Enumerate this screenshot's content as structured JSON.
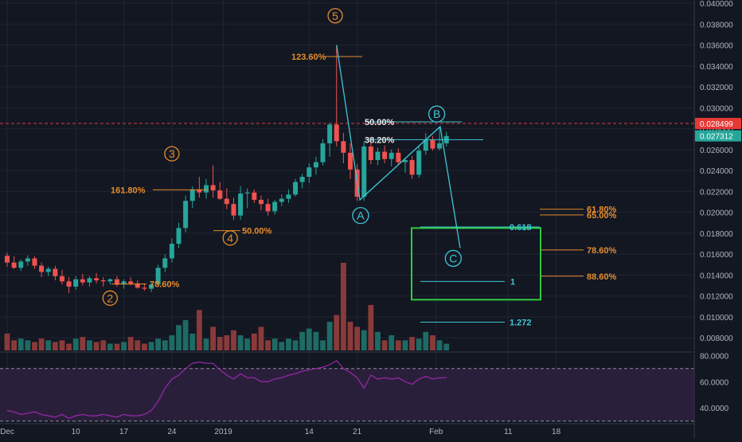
{
  "chart_data": {
    "type": "candlestick",
    "colors": {
      "background": "#131722",
      "grid": "#1f2433",
      "up": "#26a69a",
      "down": "#ef5350",
      "up_volume": "#1e6b64",
      "down_volume": "#8b3a3a",
      "fib": "#e58c2c",
      "wave_label": "#e58c2c",
      "corrective_wave": "#3ec6d4",
      "target_box": "#2ecc40",
      "resistance_line": "#e53935",
      "rsi_line": "#9c27b0",
      "rsi_band": "#2a1f3a",
      "axis_text": "#b2b5be"
    },
    "price_axis": {
      "ylim": [
        0.0068,
        0.04
      ],
      "ticks": [
        "0.040000",
        "0.038000",
        "0.036000",
        "0.034000",
        "0.032000",
        "0.030000",
        "0.028000",
        "0.026000",
        "0.024000",
        "0.022000",
        "0.020000",
        "0.018000",
        "0.016000",
        "0.014000",
        "0.012000",
        "0.010000",
        "0.008000"
      ],
      "tick_values": [
        0.04,
        0.038,
        0.036,
        0.034,
        0.032,
        0.03,
        0.028,
        0.026,
        0.024,
        0.022,
        0.02,
        0.018,
        0.016,
        0.014,
        0.012,
        0.01,
        0.008
      ],
      "price_labels": [
        {
          "value": 0.028499,
          "text": "0.028499",
          "color": "#e53935"
        },
        {
          "value": 0.027312,
          "text": "0.027312",
          "color": "#26a69a"
        }
      ]
    },
    "time_axis": {
      "labels": [
        "Dec",
        "10",
        "17",
        "24",
        "2019",
        "14",
        "21",
        "Feb",
        "11",
        "18"
      ],
      "label_index": [
        0,
        10,
        17,
        24,
        31.5,
        44,
        51,
        62.5,
        73,
        80
      ]
    },
    "candles": [
      {
        "o": 0.01585,
        "h": 0.01615,
        "l": 0.0148,
        "c": 0.0152
      },
      {
        "o": 0.0152,
        "h": 0.0158,
        "l": 0.0146,
        "c": 0.0147
      },
      {
        "o": 0.0147,
        "h": 0.0155,
        "l": 0.0144,
        "c": 0.0153
      },
      {
        "o": 0.0153,
        "h": 0.0159,
        "l": 0.0149,
        "c": 0.0156
      },
      {
        "o": 0.0156,
        "h": 0.0158,
        "l": 0.0146,
        "c": 0.0149
      },
      {
        "o": 0.0149,
        "h": 0.0152,
        "l": 0.0138,
        "c": 0.0143
      },
      {
        "o": 0.0143,
        "h": 0.0148,
        "l": 0.0139,
        "c": 0.0146
      },
      {
        "o": 0.0146,
        "h": 0.0149,
        "l": 0.0135,
        "c": 0.0139
      },
      {
        "o": 0.0139,
        "h": 0.0145,
        "l": 0.0131,
        "c": 0.0134
      },
      {
        "o": 0.0134,
        "h": 0.0138,
        "l": 0.0123,
        "c": 0.0129
      },
      {
        "o": 0.0129,
        "h": 0.0139,
        "l": 0.0126,
        "c": 0.0136
      },
      {
        "o": 0.0136,
        "h": 0.0141,
        "l": 0.013,
        "c": 0.0133
      },
      {
        "o": 0.0133,
        "h": 0.0139,
        "l": 0.0129,
        "c": 0.0137
      },
      {
        "o": 0.0137,
        "h": 0.0142,
        "l": 0.0132,
        "c": 0.0135
      },
      {
        "o": 0.0135,
        "h": 0.0138,
        "l": 0.0129,
        "c": 0.0134
      },
      {
        "o": 0.0134,
        "h": 0.0137,
        "l": 0.0131,
        "c": 0.0136
      },
      {
        "o": 0.0136,
        "h": 0.0139,
        "l": 0.0129,
        "c": 0.0131
      },
      {
        "o": 0.0131,
        "h": 0.0136,
        "l": 0.0127,
        "c": 0.0134
      },
      {
        "o": 0.0134,
        "h": 0.0138,
        "l": 0.013,
        "c": 0.0132
      },
      {
        "o": 0.0132,
        "h": 0.0135,
        "l": 0.0127,
        "c": 0.0128
      },
      {
        "o": 0.0128,
        "h": 0.0132,
        "l": 0.0125,
        "c": 0.0127
      },
      {
        "o": 0.0127,
        "h": 0.0133,
        "l": 0.0124,
        "c": 0.0131
      },
      {
        "o": 0.0131,
        "h": 0.015,
        "l": 0.0129,
        "c": 0.0147
      },
      {
        "o": 0.0147,
        "h": 0.016,
        "l": 0.0143,
        "c": 0.0156
      },
      {
        "o": 0.0156,
        "h": 0.0175,
        "l": 0.0152,
        "c": 0.017
      },
      {
        "o": 0.017,
        "h": 0.019,
        "l": 0.0166,
        "c": 0.0185
      },
      {
        "o": 0.0185,
        "h": 0.0216,
        "l": 0.0181,
        "c": 0.0211
      },
      {
        "o": 0.0211,
        "h": 0.0225,
        "l": 0.0204,
        "c": 0.0222
      },
      {
        "o": 0.0222,
        "h": 0.0234,
        "l": 0.0214,
        "c": 0.0219
      },
      {
        "o": 0.0219,
        "h": 0.0232,
        "l": 0.0213,
        "c": 0.0226
      },
      {
        "o": 0.0226,
        "h": 0.0245,
        "l": 0.0214,
        "c": 0.0221
      },
      {
        "o": 0.0221,
        "h": 0.0229,
        "l": 0.0212,
        "c": 0.0213
      },
      {
        "o": 0.0213,
        "h": 0.0223,
        "l": 0.0203,
        "c": 0.0208
      },
      {
        "o": 0.0208,
        "h": 0.0214,
        "l": 0.0193,
        "c": 0.0197
      },
      {
        "o": 0.0197,
        "h": 0.0225,
        "l": 0.0193,
        "c": 0.0218
      },
      {
        "o": 0.0218,
        "h": 0.0223,
        "l": 0.0204,
        "c": 0.0219
      },
      {
        "o": 0.0219,
        "h": 0.0222,
        "l": 0.0209,
        "c": 0.0212
      },
      {
        "o": 0.0212,
        "h": 0.0216,
        "l": 0.0202,
        "c": 0.0208
      },
      {
        "o": 0.0208,
        "h": 0.0213,
        "l": 0.0197,
        "c": 0.0201
      },
      {
        "o": 0.0201,
        "h": 0.0212,
        "l": 0.0198,
        "c": 0.021
      },
      {
        "o": 0.021,
        "h": 0.0217,
        "l": 0.0206,
        "c": 0.0213
      },
      {
        "o": 0.0213,
        "h": 0.0222,
        "l": 0.0209,
        "c": 0.0217
      },
      {
        "o": 0.0217,
        "h": 0.0232,
        "l": 0.0215,
        "c": 0.0229
      },
      {
        "o": 0.0229,
        "h": 0.0237,
        "l": 0.0223,
        "c": 0.0234
      },
      {
        "o": 0.0234,
        "h": 0.0247,
        "l": 0.0228,
        "c": 0.0243
      },
      {
        "o": 0.0243,
        "h": 0.0253,
        "l": 0.0236,
        "c": 0.0248
      },
      {
        "o": 0.0248,
        "h": 0.027,
        "l": 0.0245,
        "c": 0.0266
      },
      {
        "o": 0.0266,
        "h": 0.0285,
        "l": 0.0253,
        "c": 0.0284
      },
      {
        "o": 0.0284,
        "h": 0.036,
        "l": 0.0263,
        "c": 0.0268
      },
      {
        "o": 0.0268,
        "h": 0.0276,
        "l": 0.0247,
        "c": 0.0257
      },
      {
        "o": 0.0257,
        "h": 0.0266,
        "l": 0.0232,
        "c": 0.0241
      },
      {
        "o": 0.0241,
        "h": 0.0246,
        "l": 0.0211,
        "c": 0.0215
      },
      {
        "o": 0.0215,
        "h": 0.0268,
        "l": 0.0211,
        "c": 0.0263
      },
      {
        "o": 0.0263,
        "h": 0.0271,
        "l": 0.0246,
        "c": 0.025
      },
      {
        "o": 0.025,
        "h": 0.0262,
        "l": 0.0245,
        "c": 0.0258
      },
      {
        "o": 0.0258,
        "h": 0.0264,
        "l": 0.0247,
        "c": 0.0251
      },
      {
        "o": 0.0251,
        "h": 0.026,
        "l": 0.0244,
        "c": 0.0257
      },
      {
        "o": 0.0257,
        "h": 0.0261,
        "l": 0.0245,
        "c": 0.0248
      },
      {
        "o": 0.0248,
        "h": 0.0252,
        "l": 0.0238,
        "c": 0.025
      },
      {
        "o": 0.025,
        "h": 0.0254,
        "l": 0.0232,
        "c": 0.0236
      },
      {
        "o": 0.0236,
        "h": 0.0263,
        "l": 0.0233,
        "c": 0.0259
      },
      {
        "o": 0.0259,
        "h": 0.0276,
        "l": 0.0255,
        "c": 0.0269
      },
      {
        "o": 0.0269,
        "h": 0.0273,
        "l": 0.0259,
        "c": 0.0261
      },
      {
        "o": 0.0261,
        "h": 0.0281,
        "l": 0.0259,
        "c": 0.0266
      },
      {
        "o": 0.0266,
        "h": 0.0277,
        "l": 0.0263,
        "c": 0.0273
      }
    ],
    "volumes": [
      0.5,
      0.3,
      0.35,
      0.3,
      0.25,
      0.35,
      0.3,
      0.25,
      0.3,
      0.2,
      0.35,
      0.4,
      0.3,
      0.25,
      0.3,
      0.2,
      0.2,
      0.25,
      0.4,
      0.3,
      0.2,
      0.25,
      0.35,
      0.3,
      0.45,
      0.75,
      0.9,
      0.5,
      1.2,
      0.35,
      0.7,
      0.4,
      0.45,
      0.6,
      0.45,
      0.35,
      0.5,
      0.7,
      0.3,
      0.35,
      0.25,
      0.35,
      0.3,
      0.55,
      0.65,
      0.55,
      0.3,
      0.85,
      1.05,
      2.6,
      0.85,
      0.7,
      0.6,
      1.35,
      0.55,
      0.3,
      0.45,
      0.3,
      0.3,
      0.4,
      0.35,
      0.55,
      0.45,
      0.3,
      0.2
    ],
    "rsi": {
      "ylim": [
        28,
        82
      ],
      "ticks": [
        "80.0000",
        "60.0000",
        "40.0000"
      ],
      "tick_values": [
        80,
        60,
        40
      ],
      "band": [
        30,
        70
      ],
      "values": [
        38,
        37,
        35,
        36,
        37,
        35,
        34,
        33,
        35,
        32,
        34,
        35,
        34,
        34,
        35,
        34,
        33,
        35,
        34,
        34,
        35,
        38,
        45,
        55,
        62,
        65,
        70,
        74,
        75,
        74,
        74,
        69,
        65,
        62,
        66,
        63,
        63,
        60,
        60,
        62,
        63,
        65,
        66,
        68,
        69,
        70,
        71,
        73,
        76,
        70,
        67,
        63,
        55,
        65,
        62,
        63,
        62,
        63,
        60,
        58,
        62,
        64,
        62,
        63,
        63
      ]
    },
    "fib_levels": [
      {
        "text": "123.60%",
        "price": 0.0349
      },
      {
        "text": "161.80%",
        "price": 0.02215
      },
      {
        "text": "50.00%",
        "price": 0.01825
      },
      {
        "text": "78.60%",
        "price": 0.01315
      },
      {
        "text": "50.00%",
        "price": 0.02865
      },
      {
        "text": "38.20%",
        "price": 0.02695
      },
      {
        "text": "61.80%",
        "price": 0.0203
      },
      {
        "text": "65.00%",
        "price": 0.01975
      },
      {
        "text": "78.60%",
        "price": 0.0164
      },
      {
        "text": "88.60%",
        "price": 0.0139
      }
    ],
    "projection_levels": [
      {
        "text": "0.618",
        "price": 0.0186
      },
      {
        "text": "1",
        "price": 0.0134
      },
      {
        "text": "1.272",
        "price": 0.0095
      }
    ],
    "wave_labels": [
      {
        "text": "2",
        "index": 15,
        "price": 0.0118
      },
      {
        "text": "3",
        "index": 24,
        "price": 0.0256
      },
      {
        "text": "4",
        "index": 32.5,
        "price": 0.01755
      },
      {
        "text": "5",
        "index": 47.8,
        "price": 0.0388
      },
      {
        "text": "A",
        "index": 51.5,
        "price": 0.0197
      },
      {
        "text": "B",
        "index": 62.6,
        "price": 0.0294
      },
      {
        "text": "C",
        "index": 65,
        "price": 0.0156
      }
    ],
    "abc_path": [
      {
        "index": 48,
        "price": 0.036
      },
      {
        "index": 51.4,
        "price": 0.0212
      },
      {
        "index": 63.1,
        "price": 0.0282
      },
      {
        "index": 66,
        "price": 0.0166
      }
    ],
    "resistance": 0.028499
  }
}
